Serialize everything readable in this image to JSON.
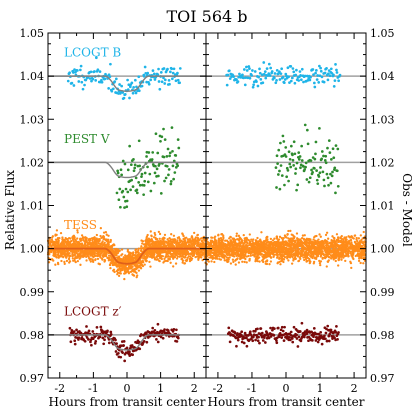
{
  "chart_data": {
    "type": "scatter",
    "title": "TOI 564 b",
    "ylabel_left": "Relative Flux",
    "ylabel_right": "Obs - Model",
    "xlabel": "Hours from transit center",
    "xlim": [
      -2.35,
      2.35
    ],
    "ylim": [
      0.97,
      1.05
    ],
    "x_ticks": [
      -2,
      -1,
      0,
      1,
      2
    ],
    "x_tick_labels": [
      "-2",
      "-1",
      "0",
      "1",
      "2"
    ],
    "y_ticks": [
      0.97,
      0.98,
      0.99,
      1.0,
      1.01,
      1.02,
      1.03,
      1.04,
      1.05
    ],
    "y_tick_labels": [
      "0.97",
      "0.98",
      "0.99",
      "1.00",
      "1.01",
      "1.02",
      "1.03",
      "1.04",
      "1.05"
    ],
    "panels": [
      "data_with_model",
      "residuals"
    ],
    "transit": {
      "half_duration_hours": 0.45,
      "ingress_hours": 0.2
    },
    "series": [
      {
        "name": "LCOGT B",
        "color": "#1fb4e8",
        "baseline": 1.04,
        "depth": 0.0035,
        "noise": 0.0012,
        "x_start": -1.75,
        "x_end": 1.6,
        "n_points": 160,
        "seed": 11
      },
      {
        "name": "PEST V",
        "color": "#2e8b2e",
        "baseline": 1.02,
        "depth": 0.0035,
        "noise": 0.0032,
        "x_start": -0.3,
        "x_end": 1.55,
        "n_points": 110,
        "seed": 23
      },
      {
        "name": "TESS",
        "color": "#ff8c1a",
        "baseline": 1.0,
        "depth": 0.0035,
        "noise": 0.0014,
        "x_start": -2.35,
        "x_end": 2.35,
        "n_points": 2200,
        "seed": 37
      },
      {
        "name": "LCOGT z′",
        "color": "#7a0a0a",
        "baseline": 0.98,
        "depth": 0.0035,
        "noise": 0.0009,
        "x_start": -1.7,
        "x_end": 1.55,
        "n_points": 230,
        "seed": 53
      }
    ],
    "model_line_color": "#808080",
    "tess_model_color": "#e0601a"
  }
}
